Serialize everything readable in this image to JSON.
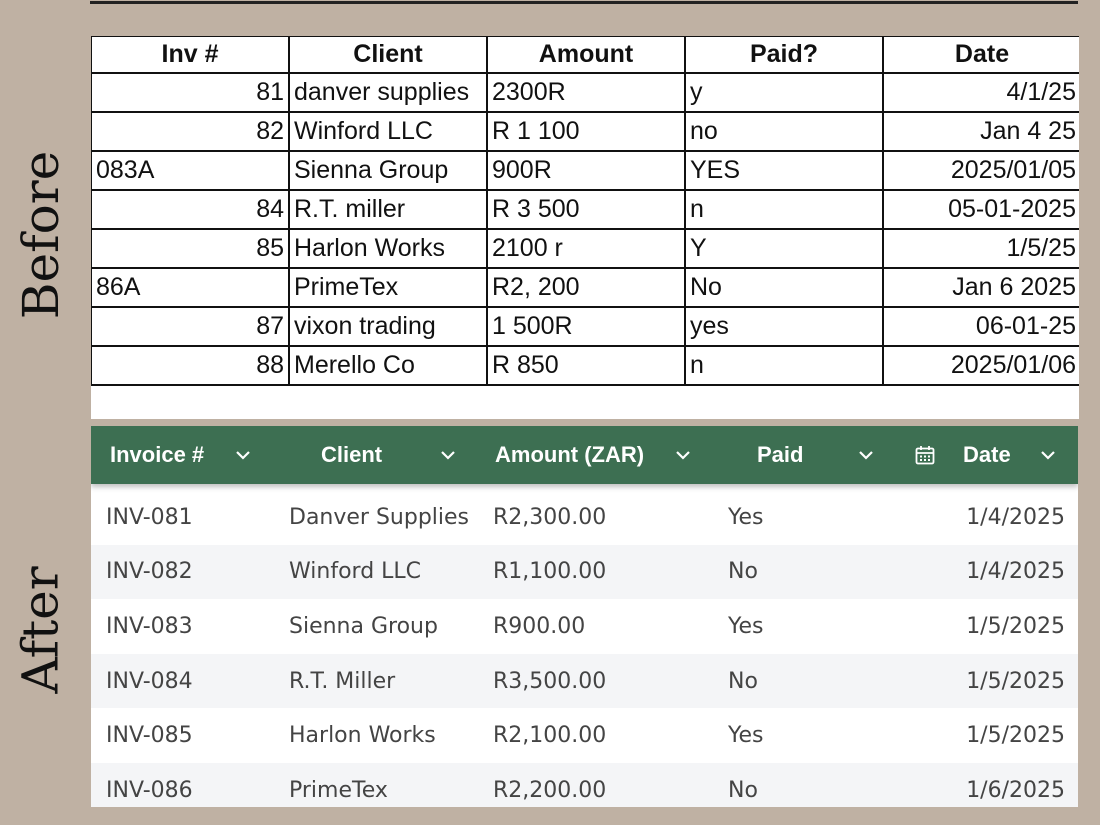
{
  "labels": {
    "before": "Before",
    "after": "After"
  },
  "before": {
    "headers": [
      "Inv #",
      "Client",
      "Amount",
      "Paid?",
      "Date"
    ],
    "rows": [
      [
        "81",
        "danver supplies",
        "2300R",
        "y",
        "4/1/25"
      ],
      [
        "82",
        "Winford LLC",
        "R 1 100",
        "no",
        "Jan 4 25"
      ],
      [
        "083A",
        "Sienna Group",
        "900R",
        "YES",
        "2025/01/05"
      ],
      [
        "84",
        "R.T. miller",
        "R 3 500",
        "n",
        "05-01-2025"
      ],
      [
        "85",
        "Harlon Works",
        "2100 r",
        "Y",
        "1/5/25"
      ],
      [
        "86A",
        "PrimeTex",
        "R2, 200",
        "No",
        "Jan 6 2025"
      ],
      [
        "87",
        "vixon trading",
        "1 500R",
        "yes",
        "06-01-25"
      ],
      [
        "88",
        "Merello Co",
        "R 850",
        "n",
        "2025/01/06"
      ]
    ]
  },
  "after": {
    "headers": [
      "Invoice #",
      "Client",
      "Amount (ZAR)",
      "Paid",
      "Date"
    ],
    "header_color": "#3d6f52",
    "rows": [
      [
        "INV-081",
        "Danver Supplies",
        "R2,300.00",
        "Yes",
        "1/4/2025"
      ],
      [
        "INV-082",
        "Winford LLC",
        "R1,100.00",
        "No",
        "1/4/2025"
      ],
      [
        "INV-083",
        "Sienna Group",
        "R900.00",
        "Yes",
        "1/5/2025"
      ],
      [
        "INV-084",
        "R.T. Miller",
        "R3,500.00",
        "No",
        "1/5/2025"
      ],
      [
        "INV-085",
        "Harlon Works",
        "R2,100.00",
        "Yes",
        "1/5/2025"
      ],
      [
        "INV-086",
        "PrimeTex",
        "R2,200.00",
        "No",
        "1/6/2025"
      ]
    ]
  },
  "icons": {
    "sort": "chevron-down-icon",
    "date": "calendar-icon"
  }
}
